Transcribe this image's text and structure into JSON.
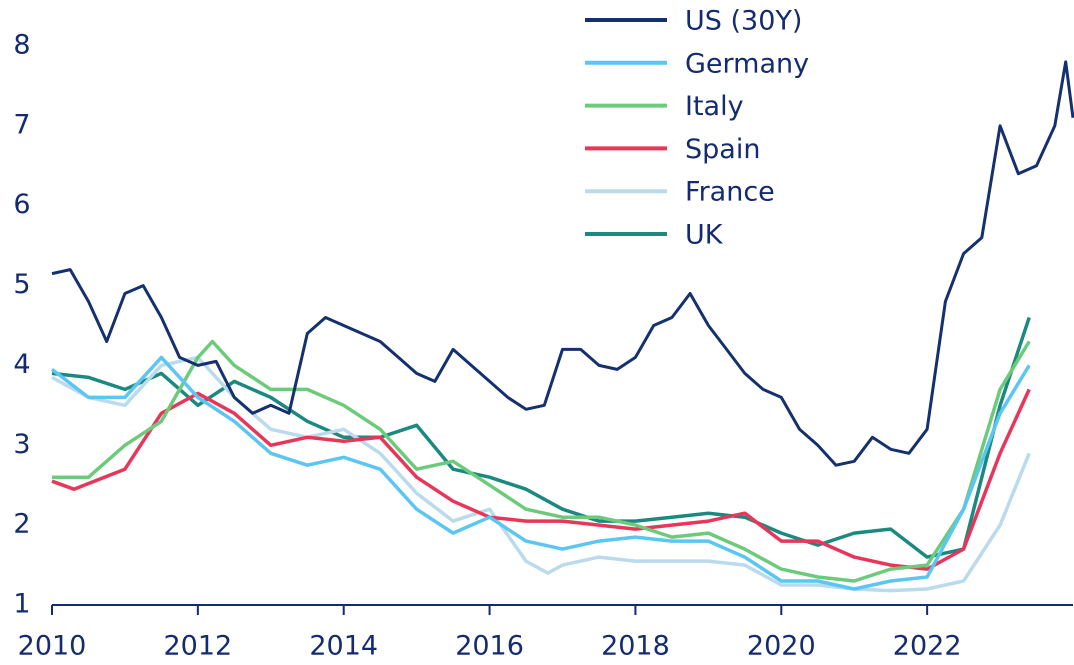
{
  "chart_data": {
    "type": "line",
    "xlim": [
      2010,
      2024
    ],
    "xticks": [
      2010,
      2012,
      2014,
      2016,
      2018,
      2020,
      2022
    ],
    "ylim": [
      1,
      8.2
    ],
    "yticks": [
      1,
      2,
      3,
      4,
      5,
      6,
      7,
      8
    ],
    "legend": "top-right",
    "series": [
      {
        "name": "US (30Y)",
        "color": "#14306f",
        "x": [
          2010,
          2010.25,
          2010.5,
          2010.75,
          2011,
          2011.25,
          2011.5,
          2011.75,
          2012,
          2012.25,
          2012.5,
          2012.75,
          2013,
          2013.25,
          2013.5,
          2013.75,
          2014,
          2014.25,
          2014.5,
          2014.75,
          2015,
          2015.25,
          2015.5,
          2015.75,
          2016,
          2016.25,
          2016.5,
          2016.75,
          2017,
          2017.25,
          2017.5,
          2017.75,
          2018,
          2018.25,
          2018.5,
          2018.75,
          2019,
          2019.25,
          2019.5,
          2019.75,
          2020,
          2020.25,
          2020.5,
          2020.75,
          2021,
          2021.25,
          2021.5,
          2021.75,
          2022,
          2022.25,
          2022.5,
          2022.75,
          2023,
          2023.25,
          2023.5,
          2023.75,
          2023.9,
          2024
        ],
        "values": [
          5.15,
          5.2,
          4.8,
          4.3,
          4.9,
          5.0,
          4.6,
          4.1,
          4.0,
          4.05,
          3.6,
          3.4,
          3.5,
          3.4,
          4.4,
          4.6,
          4.5,
          4.4,
          4.3,
          4.1,
          3.9,
          3.8,
          4.2,
          4.0,
          3.8,
          3.6,
          3.45,
          3.5,
          4.2,
          4.2,
          4.0,
          3.95,
          4.1,
          4.5,
          4.6,
          4.9,
          4.5,
          4.2,
          3.9,
          3.7,
          3.6,
          3.2,
          3.0,
          2.75,
          2.8,
          3.1,
          2.95,
          2.9,
          3.2,
          4.8,
          5.4,
          5.6,
          7.0,
          6.4,
          6.5,
          7.0,
          7.8,
          7.1
        ]
      },
      {
        "name": "Germany",
        "color": "#5cc6f2",
        "x": [
          2010,
          2010.5,
          2011,
          2011.5,
          2012,
          2012.5,
          2013,
          2013.5,
          2014,
          2014.5,
          2015,
          2015.5,
          2016,
          2016.5,
          2017,
          2017.5,
          2018,
          2018.5,
          2019,
          2019.5,
          2020,
          2020.5,
          2021,
          2021.5,
          2022,
          2022.5,
          2023,
          2023.4
        ],
        "values": [
          3.95,
          3.6,
          3.6,
          4.1,
          3.6,
          3.3,
          2.9,
          2.75,
          2.85,
          2.7,
          2.2,
          1.9,
          2.1,
          1.8,
          1.7,
          1.8,
          1.85,
          1.8,
          1.8,
          1.6,
          1.3,
          1.3,
          1.2,
          1.3,
          1.35,
          2.2,
          3.4,
          4.0
        ]
      },
      {
        "name": "Italy",
        "color": "#6ccb7a",
        "x": [
          2010,
          2010.5,
          2011,
          2011.5,
          2012,
          2012.2,
          2012.5,
          2013,
          2013.5,
          2014,
          2014.5,
          2015,
          2015.5,
          2016,
          2016.5,
          2017,
          2017.5,
          2018,
          2018.5,
          2019,
          2019.5,
          2020,
          2020.5,
          2021,
          2021.5,
          2022,
          2022.5,
          2023,
          2023.4
        ],
        "values": [
          2.6,
          2.6,
          3.0,
          3.3,
          4.1,
          4.3,
          4.0,
          3.7,
          3.7,
          3.5,
          3.2,
          2.7,
          2.8,
          2.5,
          2.2,
          2.1,
          2.1,
          2.0,
          1.85,
          1.9,
          1.7,
          1.45,
          1.35,
          1.3,
          1.45,
          1.5,
          2.2,
          3.7,
          4.3
        ]
      },
      {
        "name": "Spain",
        "color": "#e8365a",
        "x": [
          2010,
          2010.3,
          2011,
          2011.5,
          2012,
          2012.5,
          2013,
          2013.5,
          2014,
          2014.5,
          2015,
          2015.5,
          2016,
          2016.5,
          2017,
          2017.5,
          2018,
          2018.5,
          2019,
          2019.5,
          2020,
          2020.5,
          2021,
          2021.5,
          2022,
          2022.5,
          2023,
          2023.4
        ],
        "values": [
          2.55,
          2.45,
          2.7,
          3.4,
          3.65,
          3.4,
          3.0,
          3.1,
          3.05,
          3.1,
          2.6,
          2.3,
          2.1,
          2.05,
          2.05,
          2.0,
          1.95,
          2.0,
          2.05,
          2.15,
          1.8,
          1.8,
          1.6,
          1.5,
          1.45,
          1.7,
          2.9,
          3.7
        ]
      },
      {
        "name": "France",
        "color": "#b9dbec",
        "x": [
          2010,
          2010.5,
          2011,
          2011.5,
          2012,
          2012.5,
          2013,
          2013.5,
          2014,
          2014.5,
          2015,
          2015.5,
          2016,
          2016.5,
          2016.8,
          2017,
          2017.5,
          2018,
          2018.5,
          2019,
          2019.5,
          2020,
          2020.5,
          2021,
          2021.5,
          2022,
          2022.5,
          2023,
          2023.4
        ],
        "values": [
          3.85,
          3.6,
          3.5,
          4.0,
          4.1,
          3.6,
          3.2,
          3.1,
          3.2,
          2.9,
          2.4,
          2.05,
          2.2,
          1.55,
          1.4,
          1.5,
          1.6,
          1.55,
          1.55,
          1.55,
          1.5,
          1.25,
          1.25,
          1.2,
          1.18,
          1.2,
          1.3,
          2.0,
          2.9
        ]
      },
      {
        "name": "UK",
        "color": "#1a8a80",
        "x": [
          2010,
          2010.5,
          2011,
          2011.5,
          2012,
          2012.5,
          2013,
          2013.5,
          2014,
          2014.5,
          2015,
          2015.5,
          2016,
          2016.5,
          2017,
          2017.5,
          2018,
          2018.5,
          2019,
          2019.5,
          2020,
          2020.5,
          2021,
          2021.5,
          2022,
          2022.5,
          2023,
          2023.4
        ],
        "values": [
          3.9,
          3.85,
          3.7,
          3.9,
          3.5,
          3.8,
          3.6,
          3.3,
          3.1,
          3.1,
          3.25,
          2.7,
          2.6,
          2.45,
          2.2,
          2.05,
          2.05,
          2.1,
          2.15,
          2.1,
          1.9,
          1.75,
          1.9,
          1.95,
          1.6,
          1.7,
          3.5,
          4.6
        ]
      }
    ]
  }
}
